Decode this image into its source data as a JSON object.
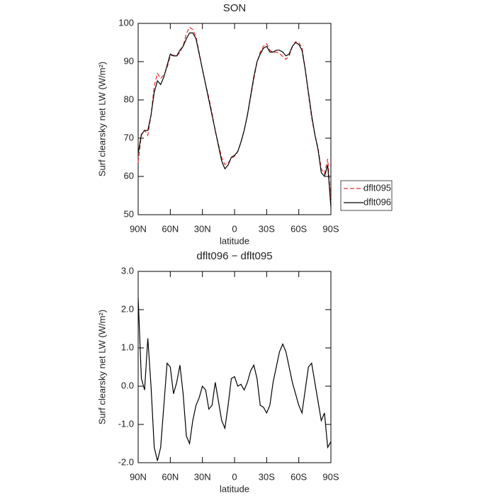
{
  "chart_data": [
    {
      "type": "line",
      "title": "SON",
      "xlabel": "latitude",
      "ylabel": "Surf clearsky net LW (W/m²)",
      "x": [
        90,
        87,
        84,
        81,
        78,
        75,
        72,
        69,
        66,
        63,
        60,
        57,
        54,
        51,
        48,
        45,
        42,
        39,
        36,
        33,
        30,
        27,
        24,
        21,
        18,
        15,
        12,
        9,
        6,
        3,
        0,
        -3,
        -6,
        -9,
        -12,
        -15,
        -18,
        -21,
        -24,
        -27,
        -30,
        -33,
        -36,
        -39,
        -42,
        -45,
        -48,
        -51,
        -54,
        -57,
        -60,
        -63,
        -66,
        -69,
        -72,
        -75,
        -78,
        -81,
        -84,
        -87,
        -90
      ],
      "series": [
        {
          "name": "dflt095",
          "color": "#e03030",
          "dash": true,
          "values": [
            63.7,
            70.8,
            72.1,
            70.75,
            76,
            83.6,
            86.95,
            85.6,
            86.5,
            88.4,
            91.5,
            91.7,
            91.4,
            92.45,
            94.2,
            97.3,
            99,
            98.4,
            96.5,
            92.3,
            88,
            84.1,
            80.6,
            76.5,
            71.9,
            68.4,
            64.9,
            63.1,
            63.5,
            64.8,
            65.25,
            66.5,
            68.95,
            72.1,
            75.9,
            80.6,
            85.45,
            89.8,
            92.5,
            94.05,
            94.7,
            93,
            92.4,
            92.5,
            92.1,
            91.4,
            90.6,
            91.5,
            93.9,
            95.2,
            95,
            93.7,
            88.1,
            81.5,
            75.4,
            70.9,
            67.4,
            61.9,
            60.7,
            64.6,
            53.45
          ]
        },
        {
          "name": "dflt096",
          "color": "#000000",
          "dash": false,
          "values": [
            66,
            71,
            72,
            72,
            76,
            82,
            85,
            84,
            86,
            89,
            92,
            91.5,
            91.5,
            93,
            94,
            96,
            97.5,
            97.5,
            96,
            92,
            88,
            84,
            80,
            76,
            72,
            68,
            64,
            62,
            63,
            65,
            65.5,
            66.5,
            69,
            72,
            76,
            81,
            86,
            90,
            92,
            93.5,
            94,
            92.5,
            92.5,
            93,
            93,
            92.5,
            91.5,
            92,
            94,
            95,
            94.5,
            93,
            88,
            82,
            76,
            71,
            67,
            61,
            60,
            63,
            52
          ]
        }
      ],
      "xlim": [
        90,
        -90
      ],
      "xticks": [
        {
          "value": 90,
          "label": "90N"
        },
        {
          "value": 60,
          "label": "60N"
        },
        {
          "value": 30,
          "label": "30N"
        },
        0,
        {
          "value": -30,
          "label": "30S"
        },
        {
          "value": -60,
          "label": "60S"
        },
        {
          "value": -90,
          "label": "90S"
        }
      ],
      "ylim": [
        50,
        100
      ],
      "yticks": [
        50,
        60,
        70,
        80,
        90,
        100
      ],
      "legend": "right"
    },
    {
      "type": "line",
      "title": "dflt096 − dflt095",
      "xlabel": "latitude",
      "ylabel": "Surf clearsky net LW (W/m²)",
      "x": [
        90,
        87,
        84,
        81,
        78,
        75,
        72,
        69,
        66,
        63,
        60,
        57,
        54,
        51,
        48,
        45,
        42,
        39,
        36,
        33,
        30,
        27,
        24,
        21,
        18,
        15,
        12,
        9,
        6,
        3,
        0,
        -3,
        -6,
        -9,
        -12,
        -15,
        -18,
        -21,
        -24,
        -27,
        -30,
        -33,
        -36,
        -39,
        -42,
        -45,
        -48,
        -51,
        -54,
        -57,
        -60,
        -63,
        -66,
        -69,
        -72,
        -75,
        -78,
        -81,
        -84,
        -87,
        -90
      ],
      "series": [
        {
          "color": "#000000",
          "dash": false,
          "values": [
            2.3,
            0.2,
            -0.1,
            1.25,
            0,
            -1.6,
            -1.95,
            -1.6,
            -0.5,
            0.6,
            0.5,
            -0.2,
            0.1,
            0.55,
            -0.2,
            -1.3,
            -1.5,
            -0.9,
            -0.5,
            -0.3,
            0,
            -0.1,
            -0.6,
            -0.5,
            0.1,
            -0.4,
            -0.9,
            -1.1,
            -0.5,
            0.2,
            0.25,
            0,
            0.05,
            -0.1,
            0.1,
            0.4,
            0.55,
            0.2,
            -0.5,
            -0.55,
            -0.7,
            -0.5,
            0.1,
            0.5,
            0.9,
            1.1,
            0.9,
            0.5,
            0.1,
            -0.2,
            -0.5,
            -0.7,
            -0.1,
            0.5,
            0.6,
            0.1,
            -0.4,
            -0.9,
            -0.7,
            -1.6,
            -1.45
          ]
        }
      ],
      "xlim": [
        90,
        -90
      ],
      "xticks": [
        {
          "value": 90,
          "label": "90N"
        },
        {
          "value": 60,
          "label": "60N"
        },
        {
          "value": 30,
          "label": "30N"
        },
        0,
        {
          "value": -30,
          "label": "30S"
        },
        {
          "value": -60,
          "label": "60S"
        },
        {
          "value": -90,
          "label": "90S"
        }
      ],
      "ylim": [
        -2,
        3
      ],
      "yticks": [
        {
          "value": -2,
          "label": "-2.0"
        },
        {
          "value": -1,
          "label": "-1.0"
        },
        {
          "value": 0,
          "label": "0.0"
        },
        {
          "value": 1,
          "label": "1.0"
        },
        {
          "value": 2,
          "label": "2.0"
        },
        {
          "value": 3,
          "label": "3.0"
        }
      ]
    }
  ]
}
